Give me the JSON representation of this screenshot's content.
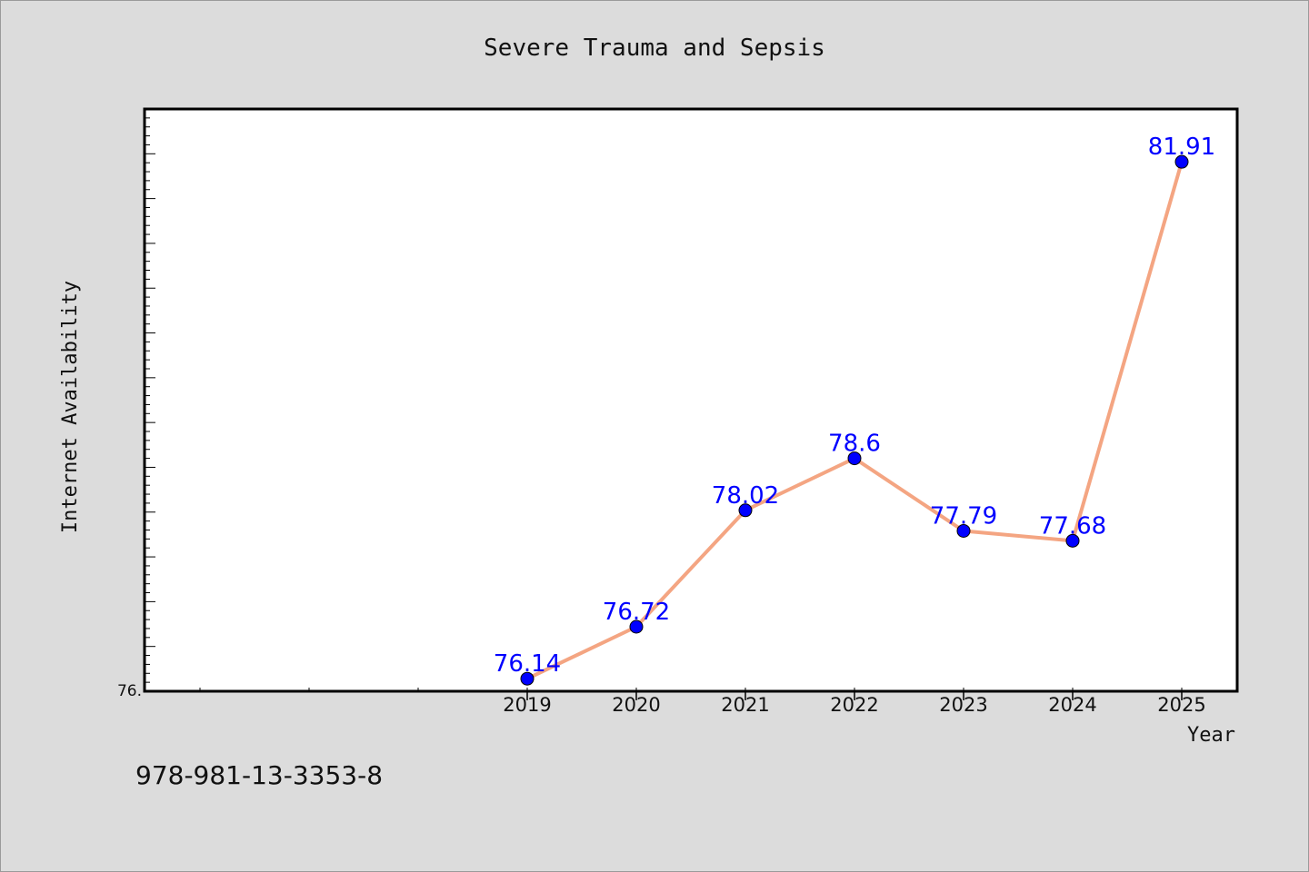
{
  "chart_data": {
    "type": "line",
    "title": "Severe Trauma and Sepsis",
    "xlabel": "Year",
    "ylabel": "Internet Availability",
    "categories": [
      "2019",
      "2020",
      "2021",
      "2022",
      "2023",
      "2024",
      "2025"
    ],
    "series": [
      {
        "values": [
          76.14,
          76.72,
          78.02,
          78.6,
          77.79,
          77.68,
          81.91
        ],
        "labels": [
          "76.14",
          "76.72",
          "78.02",
          "78.6",
          "77.79",
          "77.68",
          "81.91"
        ]
      }
    ],
    "ylim": [
      76.0,
      82.5
    ],
    "ytick_labels": [
      "76."
    ],
    "grid": false,
    "colors": {
      "line": "#f4a582",
      "marker": "#0000ff",
      "data_label": "#0000ff",
      "background": "#dcdcdc",
      "plot_background": "#ffffff"
    }
  },
  "footnote": "978-981-13-3353-8"
}
